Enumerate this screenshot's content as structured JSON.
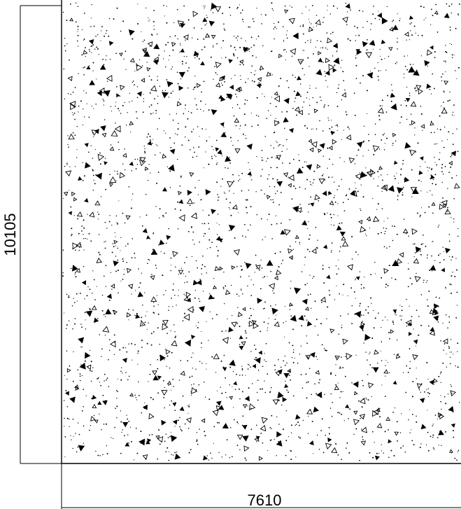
{
  "drawing": {
    "hatch_pattern": "concrete-stipple",
    "line_color": "#000000",
    "background_color": "#ffffff"
  },
  "dimensions": {
    "width_label": "7610",
    "height_label": "10105"
  }
}
